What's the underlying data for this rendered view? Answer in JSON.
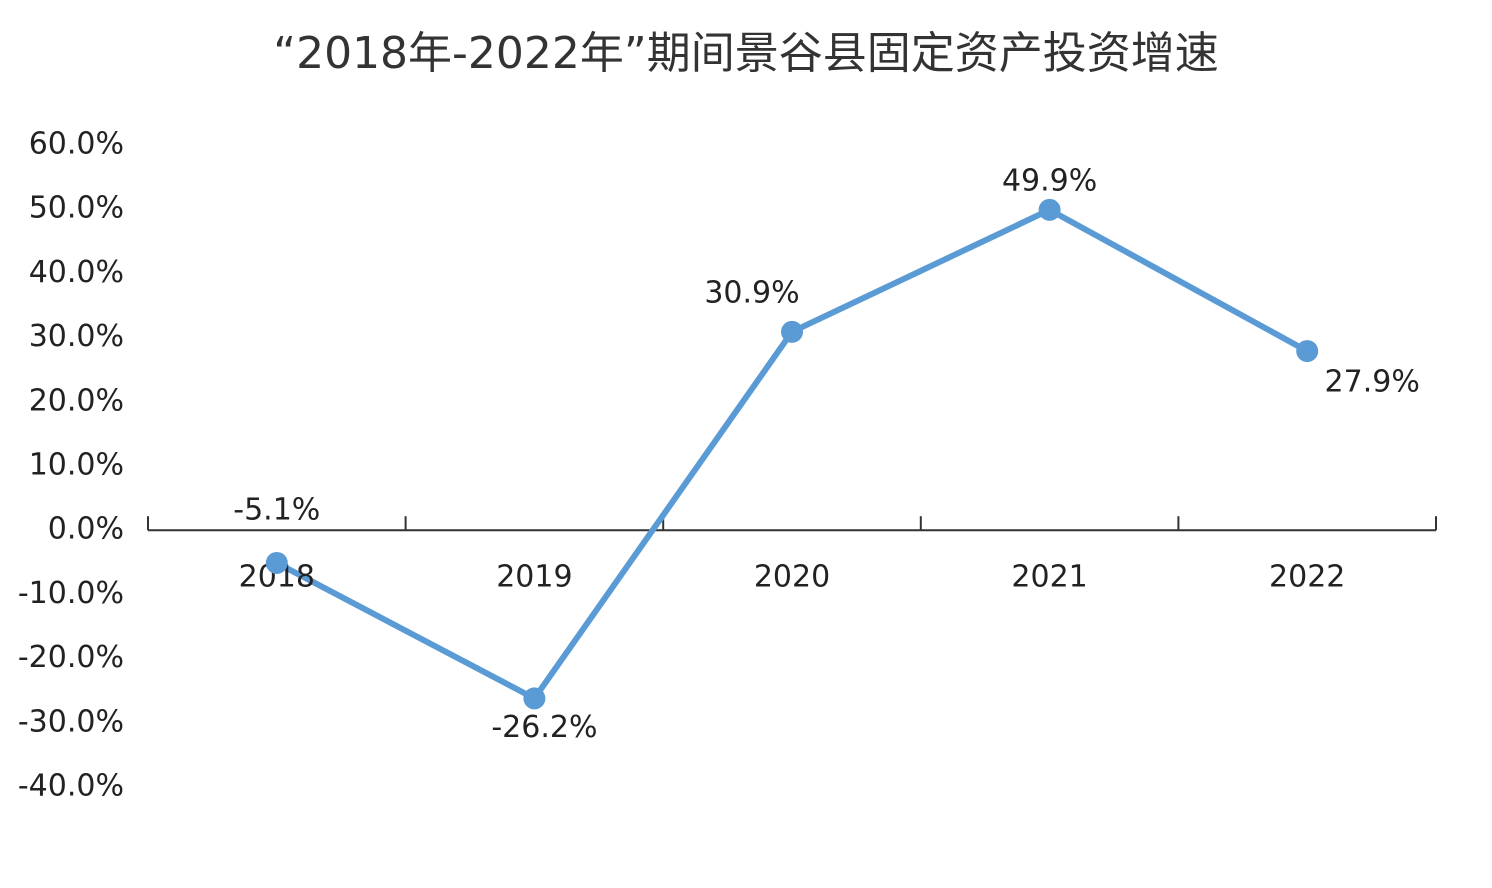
{
  "chart_data": {
    "type": "line",
    "title": "“2018年-2022年”期间景谷县固定资产投资增速",
    "categories": [
      "2018",
      "2019",
      "2020",
      "2021",
      "2022"
    ],
    "values": [
      -5.1,
      -26.2,
      30.9,
      49.9,
      27.9
    ],
    "value_labels": [
      "-5.1%",
      "-26.2%",
      "30.9%",
      "49.9%",
      "27.9%"
    ],
    "color": "#5b9bd5",
    "ylim": [
      -40,
      60
    ],
    "yticks": [
      {
        "value": 60,
        "label": "60.0%"
      },
      {
        "value": 50,
        "label": "50.0%"
      },
      {
        "value": 40,
        "label": "40.0%"
      },
      {
        "value": 30,
        "label": "30.0%"
      },
      {
        "value": 20,
        "label": "20.0%"
      },
      {
        "value": 10,
        "label": "10.0%"
      },
      {
        "value": 0,
        "label": "0.0%"
      },
      {
        "value": -10,
        "label": "-10.0%"
      },
      {
        "value": -20,
        "label": "-20.0%"
      },
      {
        "value": -30,
        "label": "-30.0%"
      },
      {
        "value": -40,
        "label": "-40.0%"
      }
    ],
    "grid": false
  }
}
